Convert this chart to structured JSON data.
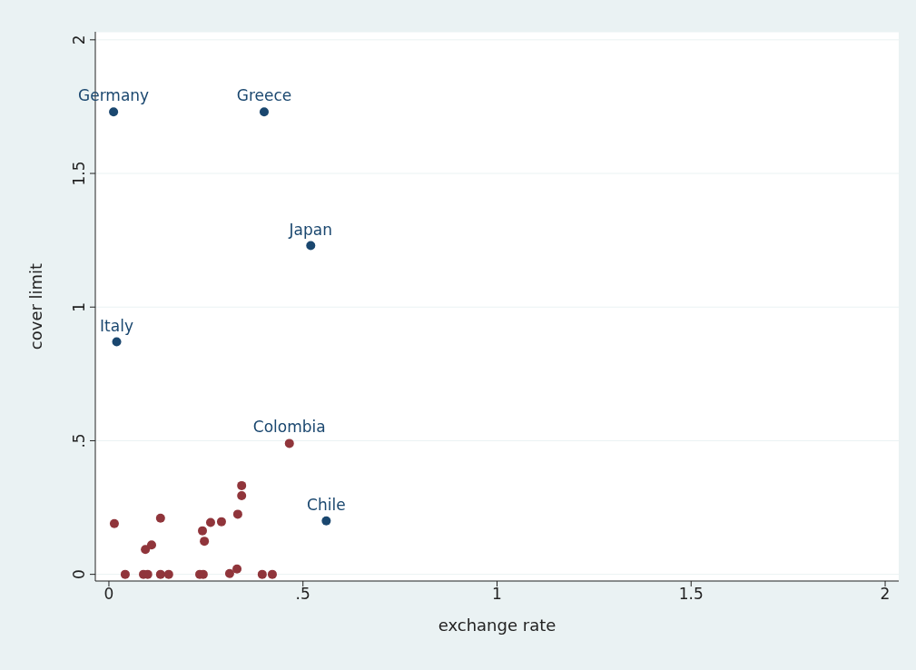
{
  "chart_data": {
    "type": "scatter",
    "xlabel": "exchange rate",
    "ylabel": "cover limit",
    "xlim": [
      -0.035,
      2.035
    ],
    "ylim": [
      -0.025,
      2.03
    ],
    "xticks": [
      0,
      {
        "value": 0.5,
        "label": ".5"
      },
      1,
      1.5,
      2
    ],
    "yticks": [
      0,
      {
        "value": 0.5,
        "label": ".5"
      },
      1,
      1.5,
      2
    ],
    "grid": "y",
    "marker": "circle",
    "legend": false,
    "series": [
      {
        "color": "#1a476f",
        "x": [
          0.012,
          0.4,
          0.52,
          0.02,
          0.56
        ],
        "values": [
          1.73,
          1.73,
          1.23,
          0.87,
          0.2
        ]
      },
      {
        "color": "#90353b",
        "x": [
          0.465,
          0.014,
          0.042,
          0.089,
          0.1,
          0.094,
          0.11,
          0.133,
          0.133,
          0.154,
          0.234,
          0.243,
          0.241,
          0.246,
          0.262,
          0.29,
          0.311,
          0.33,
          0.332,
          0.342,
          0.342,
          0.395,
          0.421
        ],
        "values": [
          0.49,
          0.19,
          0,
          0,
          0,
          0.093,
          0.11,
          0.21,
          0,
          0,
          0,
          0,
          0.163,
          0.124,
          0.194,
          0.197,
          0.003,
          0.02,
          0.225,
          0.294,
          0.332,
          0,
          0
        ]
      }
    ],
    "annotations": [
      {
        "text": "Germany",
        "x": 0.012,
        "y": 1.73
      },
      {
        "text": "Greece",
        "x": 0.4,
        "y": 1.73
      },
      {
        "text": "Japan",
        "x": 0.52,
        "y": 1.23
      },
      {
        "text": "Italy",
        "x": 0.02,
        "y": 0.87
      },
      {
        "text": "Colombia",
        "x": 0.465,
        "y": 0.49
      },
      {
        "text": "Chile",
        "x": 0.56,
        "y": 0.2
      }
    ]
  }
}
